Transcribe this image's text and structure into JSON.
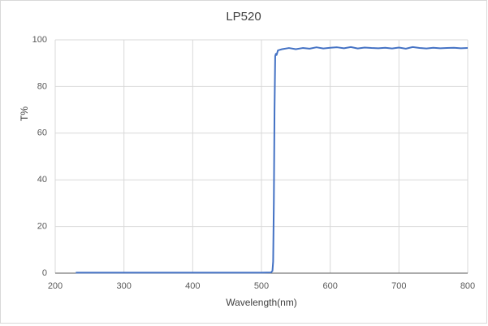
{
  "chart_data": {
    "type": "line",
    "title": "LP520",
    "x_label": "Wavelength(nm)",
    "y_label": "T%",
    "x": [
      230,
      500,
      514,
      516,
      517,
      518,
      519,
      520,
      521,
      522,
      524,
      530,
      540,
      550,
      560,
      570,
      580,
      590,
      600,
      610,
      620,
      630,
      640,
      650,
      660,
      670,
      680,
      690,
      700,
      710,
      720,
      730,
      740,
      750,
      760,
      770,
      780,
      790,
      800
    ],
    "series": [
      {
        "name": "T%",
        "color": "#4472c4",
        "values": [
          0.2,
          0.2,
          0.3,
          1,
          5,
          30,
          70,
          93,
          94,
          93.5,
          95.5,
          96,
          96.5,
          96,
          96.5,
          96.2,
          96.8,
          96.3,
          96.6,
          96.8,
          96.4,
          96.9,
          96.3,
          96.7,
          96.5,
          96.4,
          96.6,
          96.3,
          96.7,
          96.2,
          96.9,
          96.5,
          96.3,
          96.6,
          96.4,
          96.5,
          96.6,
          96.4,
          96.5
        ]
      }
    ],
    "xlim": [
      200,
      800
    ],
    "xticks": [
      200,
      300,
      400,
      500,
      600,
      700,
      800
    ],
    "ylim": [
      0,
      100
    ],
    "yticks": [
      0,
      20,
      40,
      60,
      80,
      100
    ],
    "grid": true
  }
}
